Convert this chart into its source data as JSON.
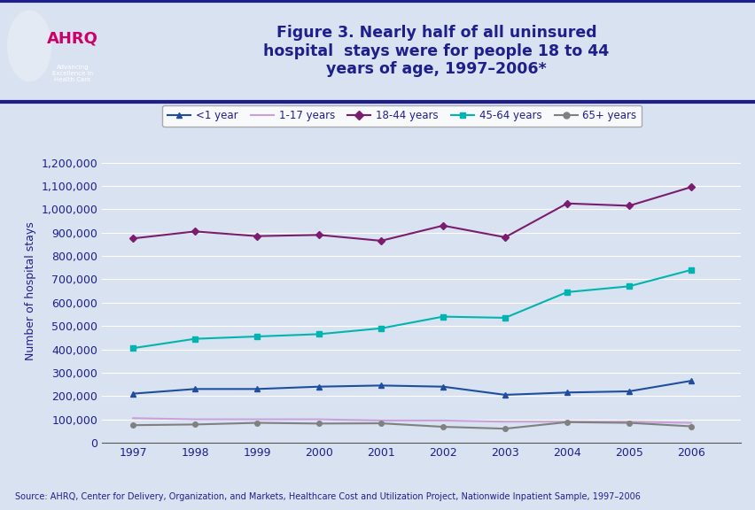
{
  "years": [
    1997,
    1998,
    1999,
    2000,
    2001,
    2002,
    2003,
    2004,
    2005,
    2006
  ],
  "series": {
    "<1 year": {
      "values": [
        210000,
        230000,
        230000,
        240000,
        245000,
        240000,
        205000,
        215000,
        220000,
        265000
      ],
      "color": "#1f4e9e",
      "marker": "^",
      "linestyle": "-"
    },
    "1-17 years": {
      "values": [
        105000,
        100000,
        100000,
        100000,
        95000,
        95000,
        90000,
        90000,
        90000,
        85000
      ],
      "color": "#c9a0dc",
      "marker": null,
      "linestyle": "-"
    },
    "18-44 years": {
      "values": [
        875000,
        905000,
        885000,
        890000,
        865000,
        930000,
        880000,
        1025000,
        1015000,
        1095000
      ],
      "color": "#7b1c6e",
      "marker": "D",
      "linestyle": "-"
    },
    "45-64 years": {
      "values": [
        405000,
        445000,
        455000,
        465000,
        490000,
        540000,
        535000,
        645000,
        670000,
        740000
      ],
      "color": "#00b5b0",
      "marker": "s",
      "linestyle": "-"
    },
    "65+ years": {
      "values": [
        75000,
        78000,
        85000,
        82000,
        83000,
        68000,
        60000,
        88000,
        85000,
        70000
      ],
      "color": "#808080",
      "marker": "o",
      "linestyle": "-"
    }
  },
  "title_lines": "Figure 3. Nearly half of all uninsured\nhospital  stays were for people 18 to 44\nyears of age, 1997–2006*",
  "ylabel": "Number of hospital stays",
  "ylim": [
    0,
    1300000
  ],
  "yticks": [
    0,
    100000,
    200000,
    300000,
    400000,
    500000,
    600000,
    700000,
    800000,
    900000,
    1000000,
    1100000,
    1200000
  ],
  "background_color": "#d9e2f0",
  "plot_bg_color": "#d9e2f0",
  "title_color": "#1f1f8c",
  "source_text": "Source: AHRQ, Center for Delivery, Organization, and Markets, Healthcare Cost and Utilization Project, Nationwide Inpatient Sample, 1997–2006",
  "border_color": "#1f1f8c",
  "header_bg": "#ffffff",
  "logo_bg": "#007b8a",
  "ahrq_color": "#cc0066",
  "grid_color": "#ffffff"
}
